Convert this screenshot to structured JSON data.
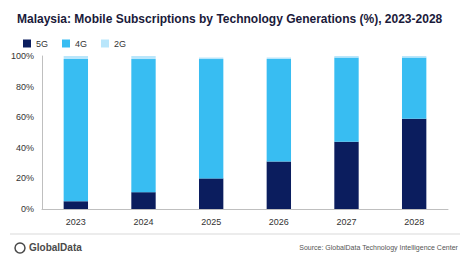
{
  "chart_data": {
    "type": "bar",
    "title": "Malaysia: Mobile Subscriptions by Technology Generations (%), 2023-2028",
    "source": "Source: GlobalData Technology Intelligence Center",
    "logo": "GlobalData",
    "categories": [
      "2023",
      "2024",
      "2025",
      "2026",
      "2027",
      "2028"
    ],
    "series": [
      {
        "name": "5G",
        "color": "#0b1d5e",
        "values": [
          5,
          11,
          20,
          31,
          44,
          59
        ]
      },
      {
        "name": "4G",
        "color": "#38bdf2",
        "values": [
          93,
          87,
          78,
          67,
          55,
          40
        ]
      },
      {
        "name": "2G",
        "color": "#b9e6fb",
        "values": [
          2,
          2,
          1,
          1,
          1,
          1
        ]
      }
    ],
    "ylim": [
      0,
      100
    ],
    "yticks": [
      {
        "value": 0,
        "label": "0%"
      },
      {
        "value": 20,
        "label": "20%"
      },
      {
        "value": 40,
        "label": "40%"
      },
      {
        "value": 60,
        "label": "60%"
      },
      {
        "value": 80,
        "label": "80%"
      },
      {
        "value": 100,
        "label": "100%"
      }
    ],
    "stacked": true,
    "grid": false,
    "legend": "top-left"
  }
}
